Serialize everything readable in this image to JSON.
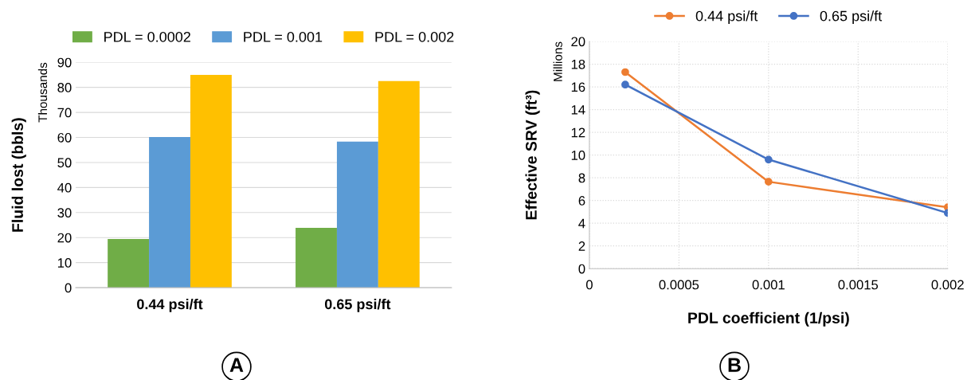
{
  "chart_data": [
    {
      "type": "bar",
      "ylabel": "Fluid lost (bbls)",
      "categories": [
        "0.44 psi/ft",
        "0.65 psi/ft"
      ],
      "series": [
        {
          "name": "PDL = 0.0002",
          "color": "#70ad47",
          "values": [
            19.4,
            23.9
          ]
        },
        {
          "name": "PDL = 0.001",
          "color": "#5b9bd5",
          "values": [
            60.2,
            58.3
          ]
        },
        {
          "name": "PDL = 0.002",
          "color": "#ffc000",
          "values": [
            85.0,
            82.5
          ]
        }
      ],
      "ylim": [
        0,
        90
      ],
      "yticks": [
        0,
        10,
        20,
        30,
        40,
        50,
        60,
        70,
        80,
        90
      ],
      "grid": "y",
      "legend": "top",
      "annotations": [
        "Thousands",
        "A"
      ]
    },
    {
      "type": "line",
      "xlabel": "PDL coefficient (1/psi)",
      "ylabel": "Effective SRV (ft³)",
      "x": [
        0.0002,
        0.001,
        0.002
      ],
      "series": [
        {
          "name": "0.44 psi/ft",
          "color": "#ed7d31",
          "values": [
            17.3,
            7.65,
            5.4
          ]
        },
        {
          "name": "0.65 psi/ft",
          "color": "#4472c4",
          "values": [
            16.2,
            9.6,
            4.9
          ]
        }
      ],
      "xlim": [
        0,
        0.002
      ],
      "xticks": [
        0,
        0.0005,
        0.001,
        0.0015,
        0.002
      ],
      "ylim": [
        0,
        20
      ],
      "yticks": [
        0,
        2,
        4,
        6,
        8,
        10,
        12,
        14,
        16,
        18,
        20
      ],
      "grid": true,
      "legend": "top",
      "marker": "circle",
      "line_style": "solid",
      "annotations": [
        "Millions",
        "B"
      ]
    }
  ]
}
